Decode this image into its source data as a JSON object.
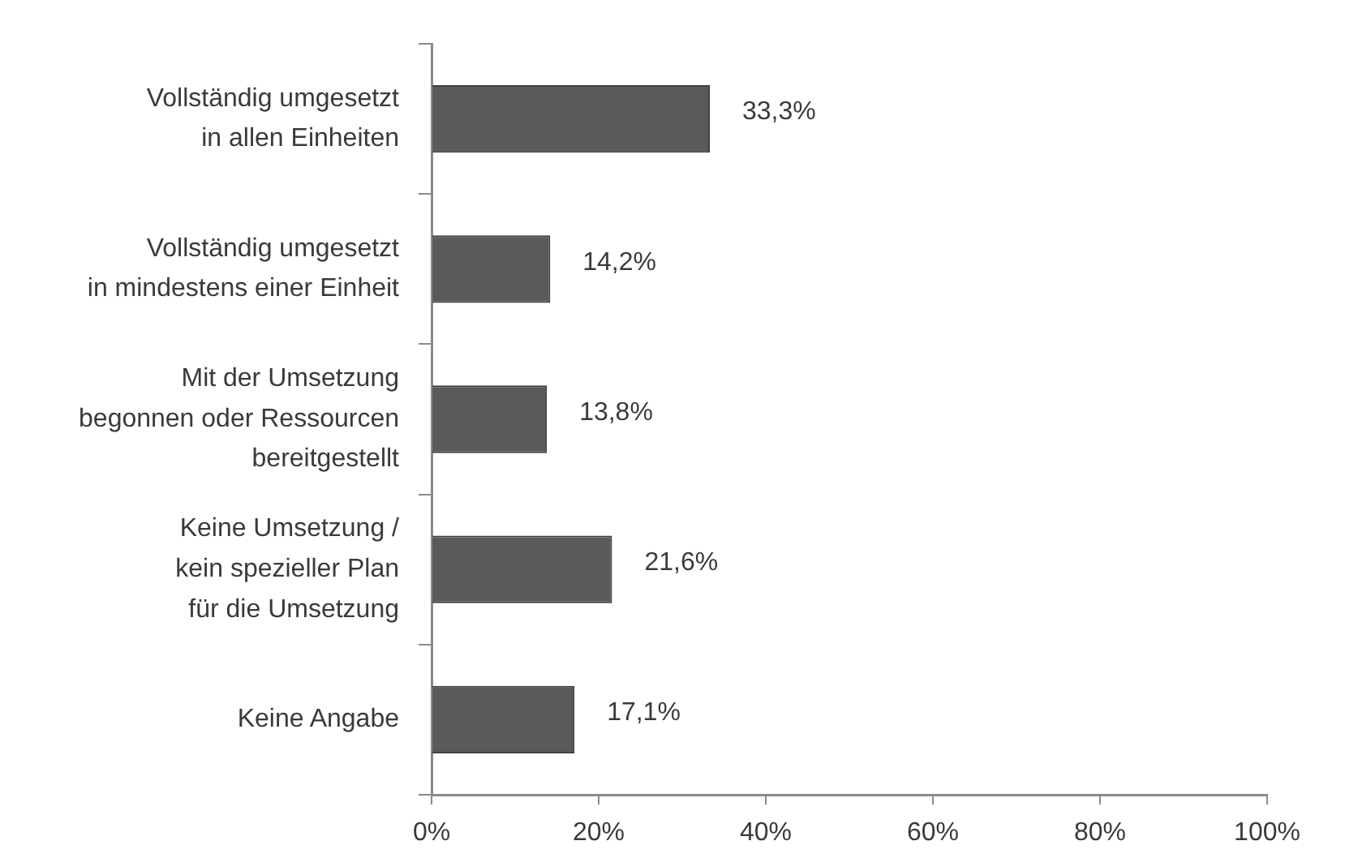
{
  "chart_data": {
    "type": "bar",
    "orientation": "horizontal",
    "categories": [
      "Vollständig umgesetzt\nin allen Einheiten",
      "Vollständig umgesetzt\nin mindestens einer Einheit",
      "Mit der Umsetzung\nbegonnen oder Ressourcen\nbereitgestellt",
      "Keine Umsetzung /\nkein spezieller Plan\nfür die Umsetzung",
      "Keine Angabe"
    ],
    "values": [
      33.3,
      14.2,
      13.8,
      21.6,
      17.1
    ],
    "color": "#5a5a5a",
    "value_labels": [
      "33,3%",
      "14,2%",
      "13,8%",
      "21,6%",
      "17,1%"
    ],
    "xlim": [
      0,
      100
    ],
    "xticks": [
      {
        "value": 0,
        "label": "0%"
      },
      {
        "value": 20,
        "label": "20%"
      },
      {
        "value": 40,
        "label": "40%"
      },
      {
        "value": 60,
        "label": "60%"
      },
      {
        "value": 80,
        "label": "80%"
      },
      {
        "value": 100,
        "label": "100%"
      }
    ],
    "grid": false,
    "legend": false
  }
}
